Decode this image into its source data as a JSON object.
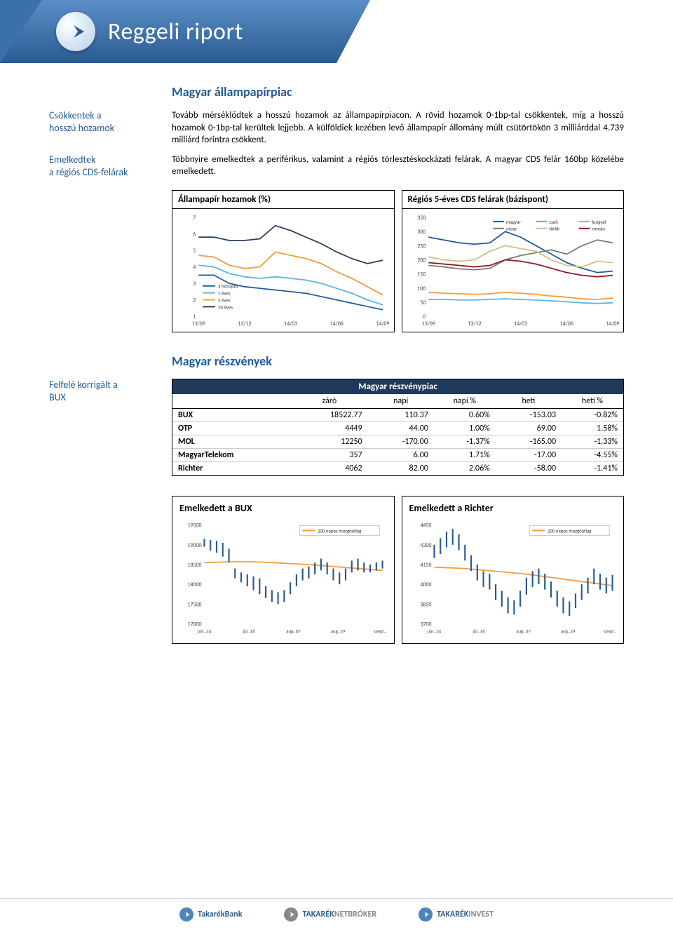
{
  "header": {
    "title": "Reggeli riport"
  },
  "section1": {
    "title": "Magyar állampapírpiac",
    "side1_line1": "Csökkentek a",
    "side1_line2": "hosszú hozamok",
    "para1": "Tovább mérséklődtek a hosszú hozamok az állampapírpiacon. A rövid hozamok 0-1bp-tal csökkentek, míg a hosszú hozamok 0-1bp-tal kerültek lejjebb. A külföldiek kezében levő állampapír állomány múlt csütörtökön 3 milliárddal 4.739 milliárd forintra csökkent.",
    "side2_line1": "Emelkedtek",
    "side2_line2": "a régiós CDS-felárak",
    "para2": "Többnyire emelkedtek a periférikus, valamint a régiós törlesztéskockázati felárak. A magyar CDS felár 160bp közelébe emelkedett.",
    "chart1": {
      "title": "Állampapír hozamok (%)",
      "ylim": [
        1,
        7
      ],
      "yticks": [
        1,
        2,
        3,
        4,
        5,
        6,
        7
      ],
      "xticks": [
        "13/09",
        "13/12",
        "14/03",
        "14/06",
        "14/09"
      ],
      "legend": [
        "3 hónapos",
        "1 éves",
        "3 éves",
        "10 éves"
      ],
      "colors": [
        "#1f5a9a",
        "#5ab4e0",
        "#f29b3c",
        "#2a3f5f"
      ],
      "series_3m": [
        3.5,
        3.5,
        3.0,
        2.8,
        2.7,
        2.6,
        2.5,
        2.4,
        2.2,
        2.0,
        1.8,
        1.6,
        1.4
      ],
      "series_1y": [
        4.1,
        4.0,
        3.6,
        3.4,
        3.3,
        3.4,
        3.3,
        3.2,
        3.0,
        2.7,
        2.4,
        2.0,
        1.7
      ],
      "series_3y": [
        4.7,
        4.6,
        4.1,
        3.9,
        4.0,
        4.9,
        4.7,
        4.5,
        4.2,
        3.7,
        3.3,
        2.8,
        2.3
      ],
      "series_10y": [
        5.8,
        5.8,
        5.6,
        5.6,
        5.7,
        6.5,
        6.2,
        5.8,
        5.4,
        4.9,
        4.5,
        4.2,
        4.4
      ]
    },
    "chart2": {
      "title": "Régiós 5-éves CDS felárak (bázispont)",
      "ylim": [
        0,
        350
      ],
      "yticks": [
        0,
        50,
        100,
        150,
        200,
        250,
        300,
        350
      ],
      "xticks": [
        "13/09",
        "13/12",
        "14/03",
        "14/06",
        "14/09"
      ],
      "legend": [
        "magyar",
        "cseh",
        "lengyel",
        "orosz",
        "török",
        "román"
      ],
      "colors": [
        "#1f5a9a",
        "#5ab4e0",
        "#f29b3c",
        "#7a7a7a",
        "#d0c080",
        "#8b1a1a"
      ],
      "series_magyar": [
        280,
        270,
        260,
        255,
        260,
        300,
        280,
        250,
        220,
        190,
        170,
        155,
        160
      ],
      "series_cseh": [
        60,
        60,
        58,
        58,
        60,
        62,
        60,
        58,
        55,
        52,
        48,
        46,
        48
      ],
      "series_lengyel": [
        85,
        82,
        80,
        78,
        80,
        85,
        82,
        78,
        72,
        68,
        62,
        60,
        65
      ],
      "series_orosz": [
        180,
        175,
        168,
        165,
        170,
        200,
        215,
        225,
        235,
        220,
        250,
        270,
        260
      ],
      "series_torok": [
        210,
        200,
        195,
        200,
        230,
        250,
        240,
        230,
        200,
        180,
        175,
        195,
        190
      ],
      "series_roman": [
        190,
        185,
        180,
        175,
        180,
        200,
        195,
        185,
        170,
        155,
        145,
        140,
        145
      ]
    }
  },
  "section2": {
    "title": "Magyar részvények",
    "side_line1": "Felfelé korrigált a",
    "side_line2": "BUX",
    "table_title": "Magyar részvénypiac",
    "columns": [
      "",
      "záró",
      "napi",
      "napi %",
      "heti",
      "heti %"
    ],
    "rows": [
      [
        "BUX",
        "18522.77",
        "110.37",
        "0.60%",
        "-153.03",
        "-0.82%"
      ],
      [
        "OTP",
        "4449",
        "44.00",
        "1.00%",
        "69.00",
        "1.58%"
      ],
      [
        "MOL",
        "12250",
        "-170.00",
        "-1.37%",
        "-165.00",
        "-1.33%"
      ],
      [
        "MagyarTelekom",
        "357",
        "6.00",
        "1.71%",
        "-17.00",
        "-4.55%"
      ],
      [
        "Richter",
        "4062",
        "82.00",
        "2.06%",
        "-58.00",
        "-1.41%"
      ]
    ],
    "chart3": {
      "title": "Emelkedett a BUX",
      "legend": "200 napos mozgóátlag",
      "legend_color": "#f29b3c",
      "ylim": [
        17000,
        19500
      ],
      "yticks": [
        17000,
        17500,
        18000,
        18500,
        19000,
        19500
      ],
      "xticks": [
        "jún..24",
        "júl..16",
        "aug..07",
        "aug..29",
        "szept..20"
      ],
      "ma": [
        18550,
        18560,
        18570,
        18570,
        18560,
        18540,
        18520,
        18500,
        18470,
        18440,
        18410,
        18380,
        18350
      ],
      "candles": [
        [
          19150,
          18950
        ],
        [
          19120,
          18850
        ],
        [
          19100,
          18800
        ],
        [
          19050,
          18700
        ],
        [
          18900,
          18550
        ],
        [
          18400,
          18150
        ],
        [
          18300,
          18050
        ],
        [
          18250,
          17950
        ],
        [
          18200,
          17850
        ],
        [
          18150,
          17750
        ],
        [
          17950,
          17650
        ],
        [
          17850,
          17550
        ],
        [
          17800,
          17500
        ],
        [
          17850,
          17550
        ],
        [
          18050,
          17750
        ],
        [
          18250,
          17950
        ],
        [
          18400,
          18100
        ],
        [
          18450,
          18150
        ],
        [
          18550,
          18250
        ],
        [
          18650,
          18350
        ],
        [
          18550,
          18250
        ],
        [
          18400,
          18100
        ],
        [
          18300,
          18000
        ],
        [
          18400,
          18100
        ],
        [
          18600,
          18300
        ],
        [
          18650,
          18350
        ],
        [
          18550,
          18300
        ],
        [
          18500,
          18300
        ],
        [
          18550,
          18350
        ],
        [
          18600,
          18400
        ]
      ]
    },
    "chart4": {
      "title": "Emelkedett a Richter",
      "legend": "200 napos mozgóátlag",
      "legend_color": "#f29b3c",
      "ylim": [
        3700,
        4450
      ],
      "yticks": [
        3700,
        3850,
        4000,
        4150,
        4300,
        4450
      ],
      "xticks": [
        "jún..24",
        "júl..16",
        "aug..07",
        "aug..29",
        "szept..20"
      ],
      "ma": [
        4130,
        4125,
        4120,
        4110,
        4100,
        4090,
        4080,
        4065,
        4050,
        4035,
        4020,
        4005,
        3990
      ],
      "candles": [
        [
          4300,
          4200
        ],
        [
          4350,
          4230
        ],
        [
          4400,
          4280
        ],
        [
          4420,
          4300
        ],
        [
          4380,
          4260
        ],
        [
          4300,
          4180
        ],
        [
          4220,
          4100
        ],
        [
          4150,
          4030
        ],
        [
          4100,
          3980
        ],
        [
          4080,
          3960
        ],
        [
          4000,
          3880
        ],
        [
          3950,
          3830
        ],
        [
          3900,
          3780
        ],
        [
          3880,
          3770
        ],
        [
          3950,
          3830
        ],
        [
          4050,
          3920
        ],
        [
          4100,
          3980
        ],
        [
          4120,
          4000
        ],
        [
          4080,
          3960
        ],
        [
          4020,
          3900
        ],
        [
          3950,
          3830
        ],
        [
          3900,
          3780
        ],
        [
          3870,
          3760
        ],
        [
          3930,
          3820
        ],
        [
          4000,
          3880
        ],
        [
          4050,
          3930
        ],
        [
          4120,
          4000
        ],
        [
          4080,
          3960
        ],
        [
          4050,
          3930
        ],
        [
          4070,
          3950
        ]
      ]
    }
  },
  "footer": {
    "brand1": "TakarékBank",
    "brand2a": "TAKARÉK",
    "brand2b": "NETBRÓKER",
    "brand3a": "TAKARÉK",
    "brand3b": "INVEST"
  }
}
